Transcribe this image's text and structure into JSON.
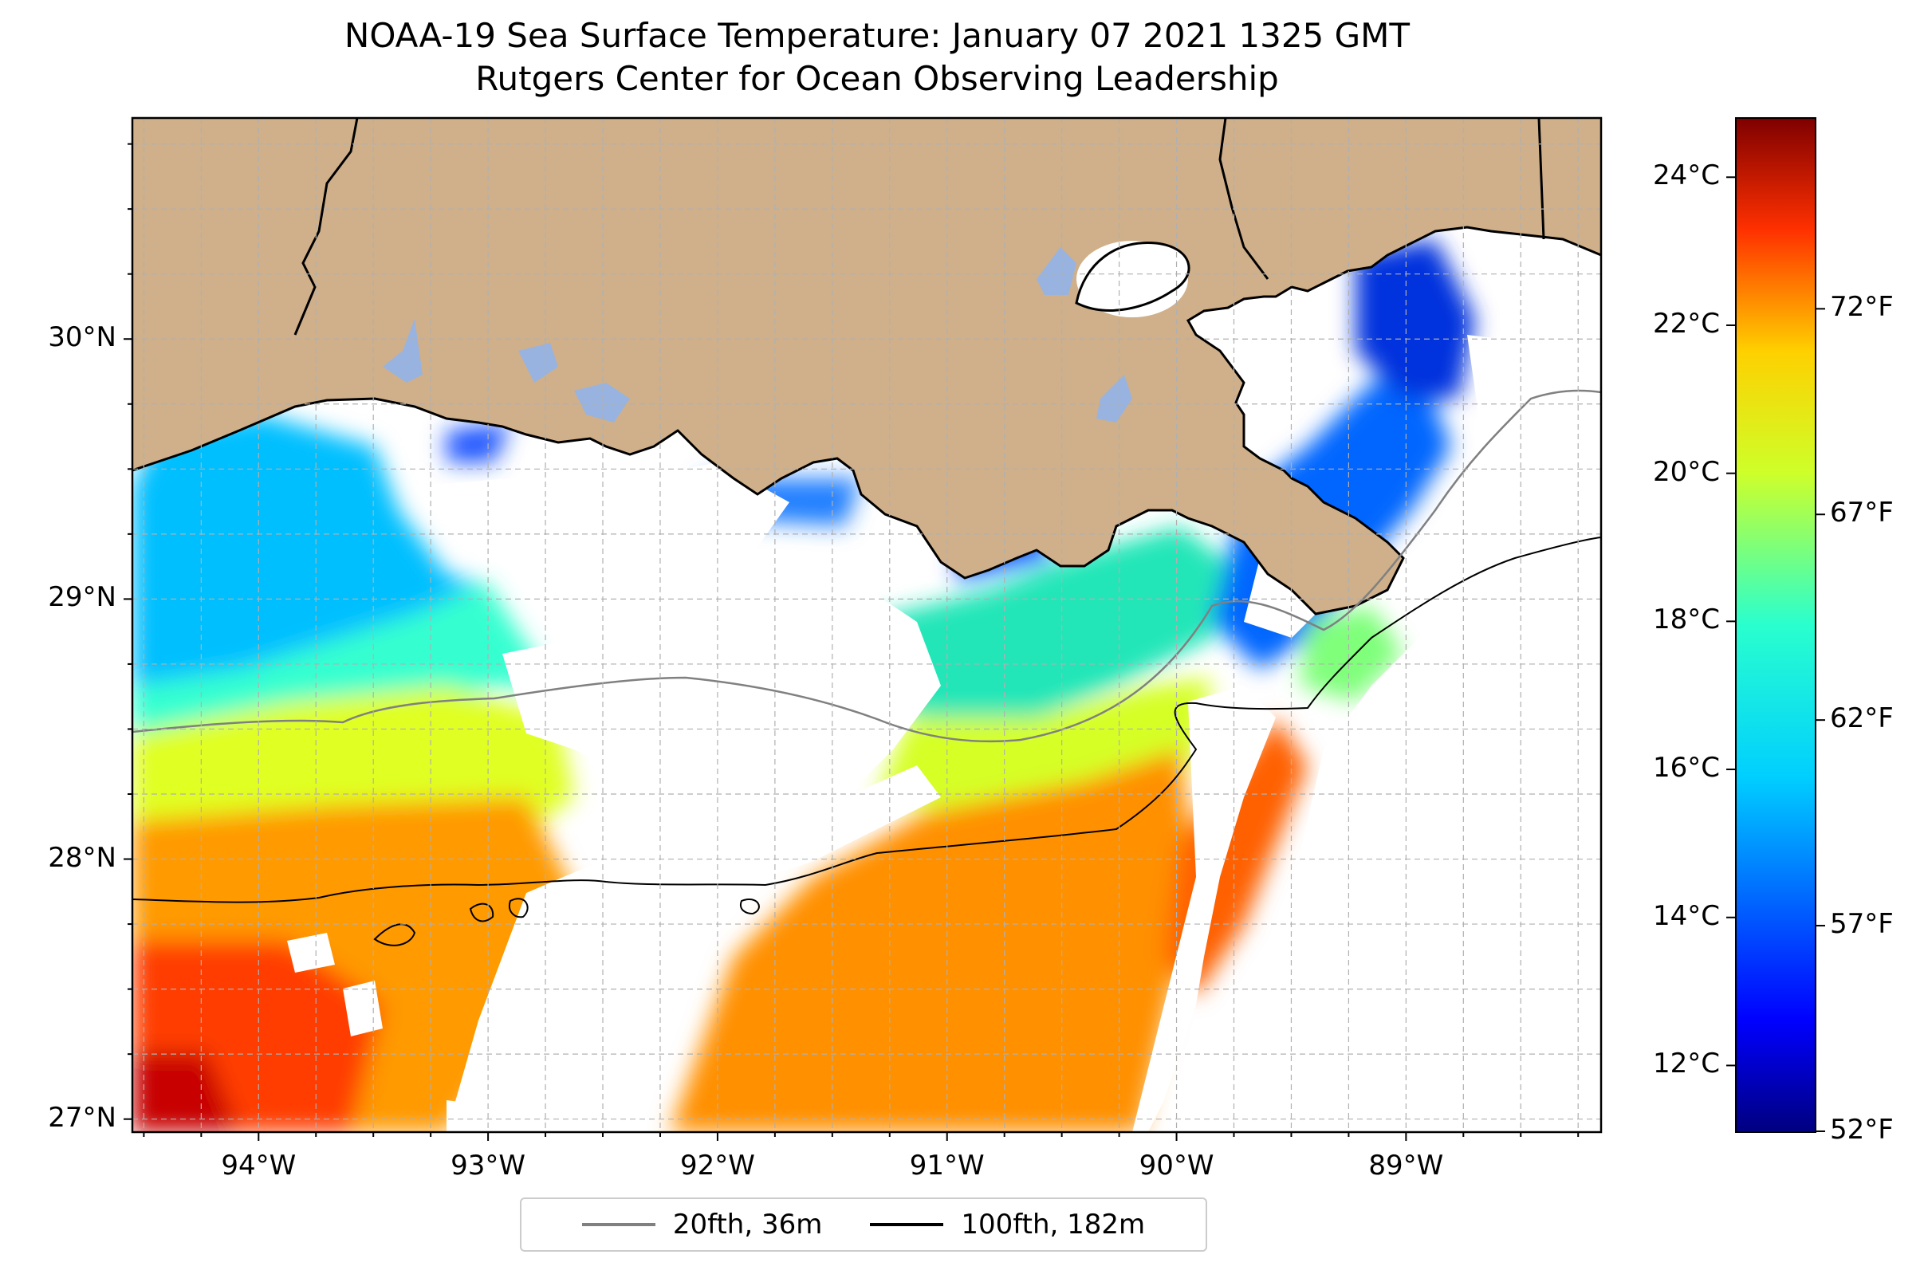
{
  "title": {
    "line1": "NOAA-19 Sea Surface Temperature: January 07 2021 1325 GMT",
    "line2": "Rutgers Center for Ocean Observing Leadership"
  },
  "map": {
    "lon_range": [
      -94.55,
      -88.15
    ],
    "lat_range": [
      26.95,
      30.85
    ],
    "lon_ticks": [
      {
        "value": -94,
        "label": "94°W"
      },
      {
        "value": -93,
        "label": "93°W"
      },
      {
        "value": -92,
        "label": "92°W"
      },
      {
        "value": -91,
        "label": "91°W"
      },
      {
        "value": -90,
        "label": "90°W"
      },
      {
        "value": -89,
        "label": "89°W"
      }
    ],
    "lat_ticks": [
      {
        "value": 27,
        "label": "27°N"
      },
      {
        "value": 28,
        "label": "28°N"
      },
      {
        "value": 29,
        "label": "29°N"
      },
      {
        "value": 30,
        "label": "30°N"
      }
    ],
    "gridlines": true,
    "land_color": "#cfb08a",
    "lake_color": "#98b3e0"
  },
  "colorbar": {
    "celsius_range": [
      11.1,
      24.8
    ],
    "celsius_ticks": [
      "12°C",
      "14°C",
      "16°C",
      "18°C",
      "20°C",
      "22°C",
      "24°C"
    ],
    "fahrenheit_ticks": [
      "52°F",
      "57°F",
      "62°F",
      "67°F",
      "72°F"
    ],
    "colormap": "jet"
  },
  "legend": {
    "items": [
      {
        "label": "20fth, 36m",
        "color": "#808080"
      },
      {
        "label": "100fth, 182m",
        "color": "#000000"
      }
    ]
  }
}
